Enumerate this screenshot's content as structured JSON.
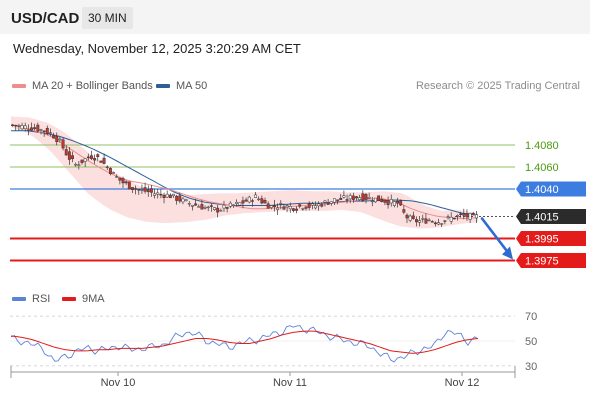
{
  "header": {
    "symbol": "USD/CAD",
    "timeframe": "30 MIN"
  },
  "timestamp": "Wednesday, November 12, 2025 3:20:29 AM CET",
  "legend": {
    "main": [
      {
        "label": "MA 20 + Bollinger Bands",
        "color": "#f08c8c"
      },
      {
        "label": "MA 50",
        "color": "#2f5f9a"
      }
    ],
    "rsi": [
      {
        "label": "RSI",
        "color": "#5b84d6"
      },
      {
        "label": "9MA",
        "color": "#e31b1b"
      }
    ]
  },
  "credit": "Research © 2025 Trading Central",
  "chart_data": {
    "type": "candlestick",
    "ylim": [
      1.396,
      1.411
    ],
    "price_levels": [
      {
        "value": 1.408,
        "label": "1.4080",
        "kind": "resistance",
        "color": "#8dc063",
        "text_color": "#4d9a12"
      },
      {
        "value": 1.406,
        "label": "1.4060",
        "kind": "resistance",
        "color": "#8dc063",
        "text_color": "#4d9a12"
      },
      {
        "value": 1.404,
        "label": "1.4040",
        "kind": "pivot",
        "color": "#3d7de0",
        "text_color": "#ffffff"
      },
      {
        "value": 1.4015,
        "label": "1.4015",
        "kind": "last",
        "color": "#2b2b2b",
        "text_color": "#ffffff"
      },
      {
        "value": 1.3995,
        "label": "1.3995",
        "kind": "support",
        "color": "#e31b1b",
        "text_color": "#ffffff"
      },
      {
        "value": 1.3975,
        "label": "1.3975",
        "kind": "support",
        "color": "#e31b1b",
        "text_color": "#ffffff"
      }
    ],
    "x_ticks": [
      "Nov 10",
      "Nov 11",
      "Nov 12"
    ],
    "close_path": [
      1.4098,
      1.4097,
      1.4096,
      1.4095,
      1.4093,
      1.409,
      1.4083,
      1.407,
      1.4062,
      1.4066,
      1.407,
      1.4068,
      1.406,
      1.4052,
      1.4046,
      1.4042,
      1.4039,
      1.4038,
      1.4036,
      1.4035,
      1.4034,
      1.4031,
      1.4028,
      1.4026,
      1.4024,
      1.4022,
      1.4021,
      1.4023,
      1.4025,
      1.4027,
      1.403,
      1.4033,
      1.4027,
      1.4024,
      1.4025,
      1.4024,
      1.4023,
      1.4025,
      1.4024,
      1.4026,
      1.4028,
      1.403,
      1.4031,
      1.4032,
      1.4033,
      1.4032,
      1.4031,
      1.403,
      1.4028,
      1.4027,
      1.4015,
      1.4011,
      1.4011,
      1.4012,
      1.401,
      1.4012,
      1.4014,
      1.4016,
      1.4015,
      1.4015
    ],
    "ma20_path": [
      1.4098,
      1.4096,
      1.4092,
      1.4088,
      1.408,
      1.4072,
      1.4064,
      1.4057,
      1.4051,
      1.4047,
      1.4045,
      1.4042,
      1.4039,
      1.4035,
      1.4031,
      1.4028,
      1.4026,
      1.4024,
      1.4022,
      1.4022,
      1.4023,
      1.4024,
      1.4025,
      1.4026,
      1.4027,
      1.4028,
      1.403,
      1.4031,
      1.4031,
      1.4028,
      1.4022,
      1.4018,
      1.4015,
      1.4014,
      1.4013,
      1.4014
    ],
    "ma50_path": [
      1.4093,
      1.4093,
      1.4091,
      1.4088,
      1.4083,
      1.4077,
      1.407,
      1.4062,
      1.4054,
      1.4046,
      1.4038,
      1.4032,
      1.4028,
      1.4026,
      1.4025,
      1.4025,
      1.4025,
      1.4026,
      1.4027,
      1.4027,
      1.4028,
      1.4029,
      1.4029,
      1.403,
      1.403,
      1.4029,
      1.4026,
      1.4022,
      1.4018,
      1.4016
    ],
    "bb_upper_path": [
      1.4106,
      1.4105,
      1.41,
      1.409,
      1.4075,
      1.4062,
      1.405,
      1.4042,
      1.4036,
      1.4034,
      1.4035,
      1.4036,
      1.4036,
      1.4037,
      1.4038,
      1.4039,
      1.4038,
      1.4038,
      1.4037,
      1.4037,
      1.4038,
      1.4036,
      1.4026,
      1.402,
      1.4021,
      1.4018
    ],
    "bb_lower_path": [
      1.4096,
      1.409,
      1.4075,
      1.4055,
      1.4035,
      1.4022,
      1.4014,
      1.401,
      1.4009,
      1.401,
      1.4012,
      1.4016,
      1.4018,
      1.4019,
      1.402,
      1.402,
      1.402,
      1.4021,
      1.4019,
      1.4012,
      1.4006,
      1.4004,
      1.4005,
      1.4008,
      1.401
    ],
    "forecast": {
      "direction": "down",
      "from": 1.4015,
      "to": 1.3975
    },
    "rsi": {
      "ticks": [
        70,
        50,
        30
      ],
      "ylim": [
        25,
        75
      ],
      "rsi_path": [
        52,
        50,
        47,
        44,
        33,
        38,
        41,
        45,
        42,
        44,
        46,
        43,
        44,
        45,
        47,
        52,
        57,
        56,
        50,
        48,
        45,
        48,
        50,
        52,
        55,
        58,
        62,
        60,
        58,
        55,
        52,
        50,
        48,
        46,
        40,
        35,
        37,
        40,
        44,
        46,
        58,
        56,
        50,
        52
      ],
      "ma9_path": [
        54,
        53,
        51,
        48,
        45,
        43,
        42,
        42,
        43,
        43,
        44,
        44,
        44,
        45,
        46,
        48,
        50,
        52,
        52,
        51,
        49,
        48,
        48,
        50,
        52,
        55,
        57,
        58,
        58,
        56,
        54,
        52,
        50,
        48,
        45,
        42,
        41,
        40,
        41,
        43,
        46,
        49,
        51,
        52
      ]
    }
  }
}
